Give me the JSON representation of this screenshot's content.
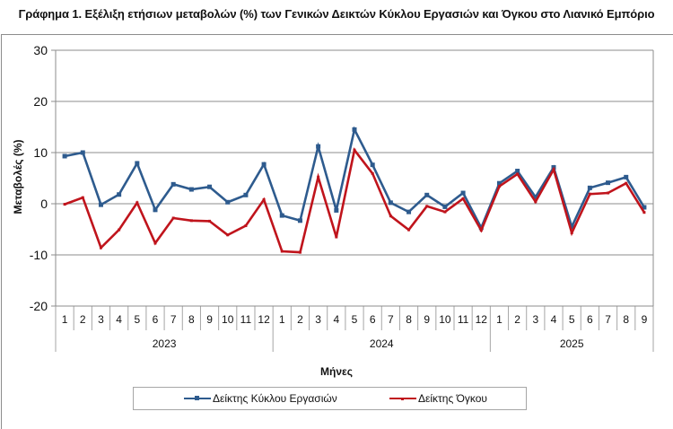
{
  "title": "Γράφημα 1. Εξέλιξη ετήσιων μεταβολών (%) των Γενικών Δεικτών Κύκλου Εργασιών και Όγκου στο Λιανικό Εμπόριο",
  "chart_data": {
    "type": "line",
    "title": "Γράφημα 1. Εξέλιξη ετήσιων μεταβολών (%) των Γενικών Δεικτών Κύκλου Εργασιών και Όγκου στο Λιανικό Εμπόριο",
    "xlabel": "Μήνες",
    "ylabel": "Μεταβολές (%)",
    "ylim": [
      -20,
      30
    ],
    "yticks": [
      30,
      20,
      10,
      0,
      -10,
      -20
    ],
    "grid": true,
    "legend_position": "bottom",
    "groups": [
      {
        "label": "2023",
        "months": [
          "1",
          "2",
          "3",
          "4",
          "5",
          "6",
          "7",
          "8",
          "9",
          "10",
          "11",
          "12"
        ]
      },
      {
        "label": "2024",
        "months": [
          "1",
          "2",
          "3",
          "4",
          "5",
          "6",
          "7",
          "8",
          "9",
          "10",
          "11",
          "12"
        ]
      },
      {
        "label": "2025",
        "months": [
          "1",
          "2",
          "3",
          "4",
          "5",
          "6",
          "7",
          "8",
          "9"
        ]
      }
    ],
    "categories": [
      "2023-1",
      "2023-2",
      "2023-3",
      "2023-4",
      "2023-5",
      "2023-6",
      "2023-7",
      "2023-8",
      "2023-9",
      "2023-10",
      "2023-11",
      "2023-12",
      "2024-1",
      "2024-2",
      "2024-3",
      "2024-4",
      "2024-5",
      "2024-6",
      "2024-7",
      "2024-8",
      "2024-9",
      "2024-10",
      "2024-11",
      "2024-12",
      "2025-1",
      "2025-2",
      "2025-3",
      "2025-4",
      "2025-5",
      "2025-6",
      "2025-7",
      "2025-8",
      "2025-9"
    ],
    "series": [
      {
        "name": "Δείκτης Κύκλου Εργασιών",
        "color": "#2e5b8e",
        "values": [
          9.3,
          10.0,
          -0.2,
          1.8,
          7.9,
          -1.2,
          3.8,
          2.8,
          3.3,
          0.3,
          1.7,
          7.7,
          -2.3,
          -3.3,
          11.2,
          -1.3,
          14.5,
          7.6,
          0.2,
          -1.6,
          1.7,
          -0.6,
          2.1,
          -4.7,
          4.0,
          6.4,
          1.3,
          7.1,
          -4.5,
          3.1,
          4.1,
          5.2,
          -0.7
        ]
      },
      {
        "name": "Δείκτης Όγκου",
        "color": "#c0141c",
        "values": [
          -0.1,
          1.2,
          -8.6,
          -5.1,
          0.2,
          -7.7,
          -2.8,
          -3.3,
          -3.4,
          -6.1,
          -4.3,
          0.8,
          -9.3,
          -9.5,
          5.2,
          -6.5,
          10.5,
          5.9,
          -2.4,
          -5.1,
          -0.5,
          -1.6,
          1.0,
          -5.2,
          3.4,
          5.8,
          0.4,
          6.7,
          -5.7,
          1.9,
          2.1,
          4.0,
          -1.7
        ]
      }
    ]
  },
  "legend": {
    "items": [
      {
        "label": "Δείκτης Κύκλου Εργασιών",
        "color": "#2e5b8e"
      },
      {
        "label": "Δείκτης Όγκου",
        "color": "#c0141c"
      }
    ]
  }
}
